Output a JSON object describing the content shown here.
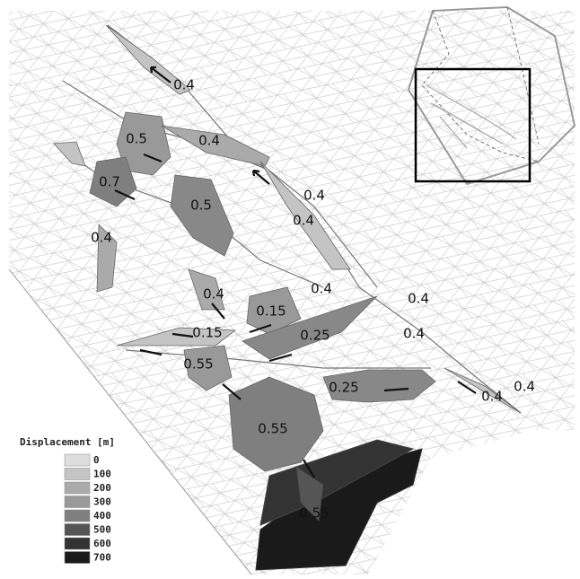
{
  "annotations": [
    "0.4",
    "0.5",
    "0.4",
    "0.7",
    "0.5",
    "0.4",
    "0.4",
    "0.4",
    "0.4",
    "0.4",
    "0.15",
    "0.4",
    "0.15",
    "0.25",
    "0.4",
    "0.55",
    "0.25",
    "0.4",
    "0.4",
    "0.55",
    "0.55"
  ],
  "legend": {
    "title": "Displacement [m]",
    "entries": [
      {
        "value": 0,
        "color": "#dddddd"
      },
      {
        "value": 100,
        "color": "#c4c4c4"
      },
      {
        "value": 200,
        "color": "#aaaaaa"
      },
      {
        "value": 300,
        "color": "#999999"
      },
      {
        "value": 400,
        "color": "#7f7f7f"
      },
      {
        "value": 500,
        "color": "#555555"
      },
      {
        "value": 600,
        "color": "#333333"
      },
      {
        "value": 700,
        "color": "#1a1a1a"
      }
    ]
  }
}
